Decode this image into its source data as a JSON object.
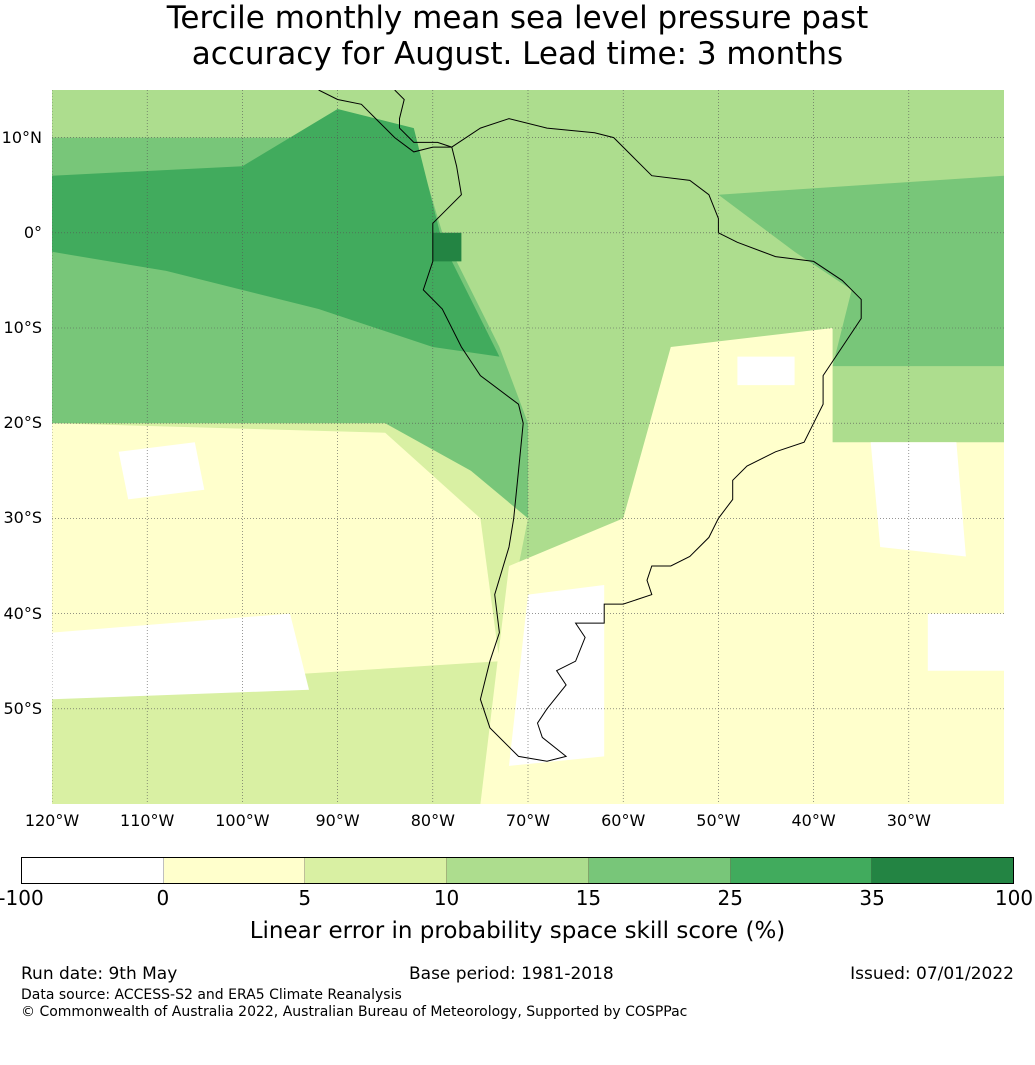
{
  "title": {
    "line1": "Tercile monthly mean sea level pressure past",
    "line2": "accuracy for August. Lead time: 3 months"
  },
  "map": {
    "extent_lon": [
      -120,
      -20
    ],
    "extent_lat": [
      -60,
      15
    ],
    "lat_labels": [
      {
        "value": 10,
        "text": "10°N"
      },
      {
        "value": 0,
        "text": "0°"
      },
      {
        "value": -10,
        "text": "10°S"
      },
      {
        "value": -20,
        "text": "20°S"
      },
      {
        "value": -30,
        "text": "30°S"
      },
      {
        "value": -40,
        "text": "40°S"
      },
      {
        "value": -50,
        "text": "50°S"
      }
    ],
    "lon_labels": [
      {
        "value": -120,
        "text": "120°W"
      },
      {
        "value": -110,
        "text": "110°W"
      },
      {
        "value": -100,
        "text": "100°W"
      },
      {
        "value": -90,
        "text": "90°W"
      },
      {
        "value": -80,
        "text": "80°W"
      },
      {
        "value": -70,
        "text": "70°W"
      },
      {
        "value": -60,
        "text": "60°W"
      },
      {
        "value": -50,
        "text": "50°W"
      },
      {
        "value": -40,
        "text": "40°W"
      },
      {
        "value": -30,
        "text": "30°W"
      }
    ],
    "gridlines": true,
    "land_outline_color": "#000000",
    "skill_regions": [
      {
        "level": "10-15",
        "color": "#addd8e",
        "polygon": [
          [
            -120,
            15
          ],
          [
            -20,
            15
          ],
          [
            -20,
            -20
          ],
          [
            -120,
            -20
          ]
        ]
      },
      {
        "level": "5-10",
        "color": "#d9f0a3",
        "polygon": [
          [
            -120,
            -17
          ],
          [
            -78,
            -18
          ],
          [
            -70,
            -30
          ],
          [
            -72,
            -40
          ],
          [
            -60,
            -45
          ],
          [
            -40,
            -38
          ],
          [
            -20,
            -35
          ],
          [
            -20,
            -60
          ],
          [
            -120,
            -60
          ]
        ]
      },
      {
        "level": "0-5",
        "color": "#ffffcc",
        "polygon": [
          [
            -120,
            -20
          ],
          [
            -85,
            -21
          ],
          [
            -75,
            -30
          ],
          [
            -73,
            -45
          ],
          [
            -120,
            -48
          ]
        ]
      },
      {
        "level": "0-5",
        "color": "#ffffcc",
        "polygon": [
          [
            -55,
            -12
          ],
          [
            -38,
            -10
          ],
          [
            -38,
            -22
          ],
          [
            -20,
            -22
          ],
          [
            -20,
            -60
          ],
          [
            -75,
            -60
          ],
          [
            -72,
            -35
          ],
          [
            -60,
            -30
          ]
        ]
      },
      {
        "level": "-100-0",
        "color": "#ffffff",
        "polygon": [
          [
            -113,
            -23
          ],
          [
            -105,
            -22
          ],
          [
            -104,
            -27
          ],
          [
            -112,
            -28
          ]
        ]
      },
      {
        "level": "-100-0",
        "color": "#ffffff",
        "polygon": [
          [
            -120,
            -42
          ],
          [
            -95,
            -40
          ],
          [
            -93,
            -48
          ],
          [
            -120,
            -49
          ]
        ]
      },
      {
        "level": "-100-0",
        "color": "#ffffff",
        "polygon": [
          [
            -70,
            -38
          ],
          [
            -62,
            -37
          ],
          [
            -62,
            -55
          ],
          [
            -72,
            -56
          ]
        ]
      },
      {
        "level": "-100-0",
        "color": "#ffffff",
        "polygon": [
          [
            -34,
            -22
          ],
          [
            -25,
            -22
          ],
          [
            -24,
            -34
          ],
          [
            -33,
            -33
          ]
        ]
      },
      {
        "level": "-100-0",
        "color": "#ffffff",
        "polygon": [
          [
            -48,
            -13
          ],
          [
            -42,
            -13
          ],
          [
            -42,
            -16
          ],
          [
            -48,
            -16
          ]
        ]
      },
      {
        "level": "-100-0",
        "color": "#ffffff",
        "polygon": [
          [
            -28,
            -40
          ],
          [
            -20,
            -40
          ],
          [
            -20,
            -46
          ],
          [
            -28,
            -46
          ]
        ]
      },
      {
        "level": "15-25",
        "color": "#78c679",
        "polygon": [
          [
            -120,
            10
          ],
          [
            -82,
            10
          ],
          [
            -79,
            0
          ],
          [
            -73,
            -12
          ],
          [
            -70,
            -20
          ],
          [
            -70,
            -30
          ],
          [
            -76,
            -25
          ],
          [
            -85,
            -20
          ],
          [
            -120,
            -20
          ]
        ]
      },
      {
        "level": "15-25",
        "color": "#78c679",
        "polygon": [
          [
            -50,
            4
          ],
          [
            -20,
            6
          ],
          [
            -20,
            -14
          ],
          [
            -38,
            -14
          ],
          [
            -36,
            -6
          ],
          [
            -42,
            -2
          ]
        ]
      },
      {
        "level": "25-35",
        "color": "#41ab5d",
        "polygon": [
          [
            -120,
            6
          ],
          [
            -100,
            7
          ],
          [
            -90,
            13
          ],
          [
            -82,
            11
          ],
          [
            -79,
            -1
          ],
          [
            -76,
            -7
          ],
          [
            -73,
            -13
          ],
          [
            -80,
            -12
          ],
          [
            -92,
            -8
          ],
          [
            -108,
            -4
          ],
          [
            -120,
            -2
          ]
        ]
      },
      {
        "level": "35-100",
        "color": "#238443",
        "polygon": [
          [
            -80,
            0
          ],
          [
            -77,
            0
          ],
          [
            -77,
            -3
          ],
          [
            -80,
            -3
          ]
        ]
      }
    ],
    "coastlines": [
      [
        [
          -78,
          9
        ],
        [
          -75,
          11
        ],
        [
          -72,
          12
        ],
        [
          -68,
          11
        ],
        [
          -63,
          10.5
        ],
        [
          -61,
          10
        ],
        [
          -59,
          8
        ],
        [
          -57,
          6
        ],
        [
          -53,
          5.5
        ],
        [
          -51,
          4
        ],
        [
          -50,
          1.5
        ],
        [
          -50,
          0
        ],
        [
          -48,
          -1
        ],
        [
          -44,
          -2.5
        ],
        [
          -40,
          -3
        ],
        [
          -37,
          -5
        ],
        [
          -35,
          -7
        ],
        [
          -35,
          -9
        ],
        [
          -37,
          -12
        ],
        [
          -39,
          -15
        ],
        [
          -39,
          -18
        ],
        [
          -40,
          -20
        ],
        [
          -41,
          -22
        ],
        [
          -44,
          -23
        ],
        [
          -47,
          -24.5
        ],
        [
          -48.5,
          -26
        ],
        [
          -48.5,
          -28
        ],
        [
          -50,
          -30
        ],
        [
          -51,
          -32
        ],
        [
          -53,
          -34
        ],
        [
          -55,
          -35
        ],
        [
          -57,
          -35
        ],
        [
          -57.5,
          -36.5
        ],
        [
          -57,
          -38
        ],
        [
          -60,
          -39
        ],
        [
          -62,
          -39
        ],
        [
          -62,
          -41
        ],
        [
          -65,
          -41
        ],
        [
          -64,
          -42.5
        ],
        [
          -65,
          -45
        ],
        [
          -67,
          -46
        ],
        [
          -66,
          -47.5
        ],
        [
          -68,
          -50
        ],
        [
          -69,
          -51.5
        ],
        [
          -68.5,
          -53
        ],
        [
          -66,
          -55
        ],
        [
          -68,
          -55.5
        ],
        [
          -71,
          -55
        ],
        [
          -74,
          -52
        ],
        [
          -75,
          -49
        ],
        [
          -74,
          -45
        ],
        [
          -73,
          -42
        ],
        [
          -73.5,
          -38
        ],
        [
          -72,
          -33
        ],
        [
          -71.5,
          -30
        ],
        [
          -71,
          -25
        ],
        [
          -70.5,
          -20
        ],
        [
          -71,
          -18
        ],
        [
          -75,
          -15
        ],
        [
          -77,
          -12
        ],
        [
          -79,
          -8
        ],
        [
          -81,
          -6
        ],
        [
          -80,
          -3
        ],
        [
          -80,
          -1
        ],
        [
          -80,
          1
        ],
        [
          -79,
          2
        ],
        [
          -77,
          4
        ],
        [
          -77.5,
          7
        ],
        [
          -78,
          9
        ]
      ],
      [
        [
          -78,
          9
        ],
        [
          -80,
          9
        ],
        [
          -82,
          8.5
        ],
        [
          -84,
          10
        ],
        [
          -86,
          12
        ],
        [
          -87.5,
          13.5
        ],
        [
          -90,
          14
        ],
        [
          -92,
          15
        ]
      ],
      [
        [
          -84,
          15
        ],
        [
          -83,
          14
        ],
        [
          -83.5,
          12
        ],
        [
          -83.5,
          11
        ],
        [
          -82,
          9.5
        ],
        [
          -79.5,
          9.5
        ],
        [
          -78,
          9
        ]
      ]
    ]
  },
  "colorbar": {
    "segments": [
      {
        "range": "-100-0",
        "color": "#ffffff"
      },
      {
        "range": "0-5",
        "color": "#ffffcc"
      },
      {
        "range": "5-10",
        "color": "#d9f0a3"
      },
      {
        "range": "10-15",
        "color": "#addd8e"
      },
      {
        "range": "15-25",
        "color": "#78c679"
      },
      {
        "range": "25-35",
        "color": "#41ab5d"
      },
      {
        "range": "35-100",
        "color": "#238443"
      }
    ],
    "ticks": [
      "-100",
      "0",
      "5",
      "10",
      "15",
      "25",
      "35",
      "100"
    ],
    "label": "Linear error in probability space skill score (%)"
  },
  "footer": {
    "run_date": "Run date: 9th May",
    "base_period": "Base period: 1981-2018",
    "issued": "Issued: 07/01/2022",
    "data_source": "Data source: ACCESS-S2 and ERA5 Climate Reanalysis",
    "copyright": "© Commonwealth of Australia 2022, Australian Bureau of Meteorology, Supported by COSPPac"
  }
}
